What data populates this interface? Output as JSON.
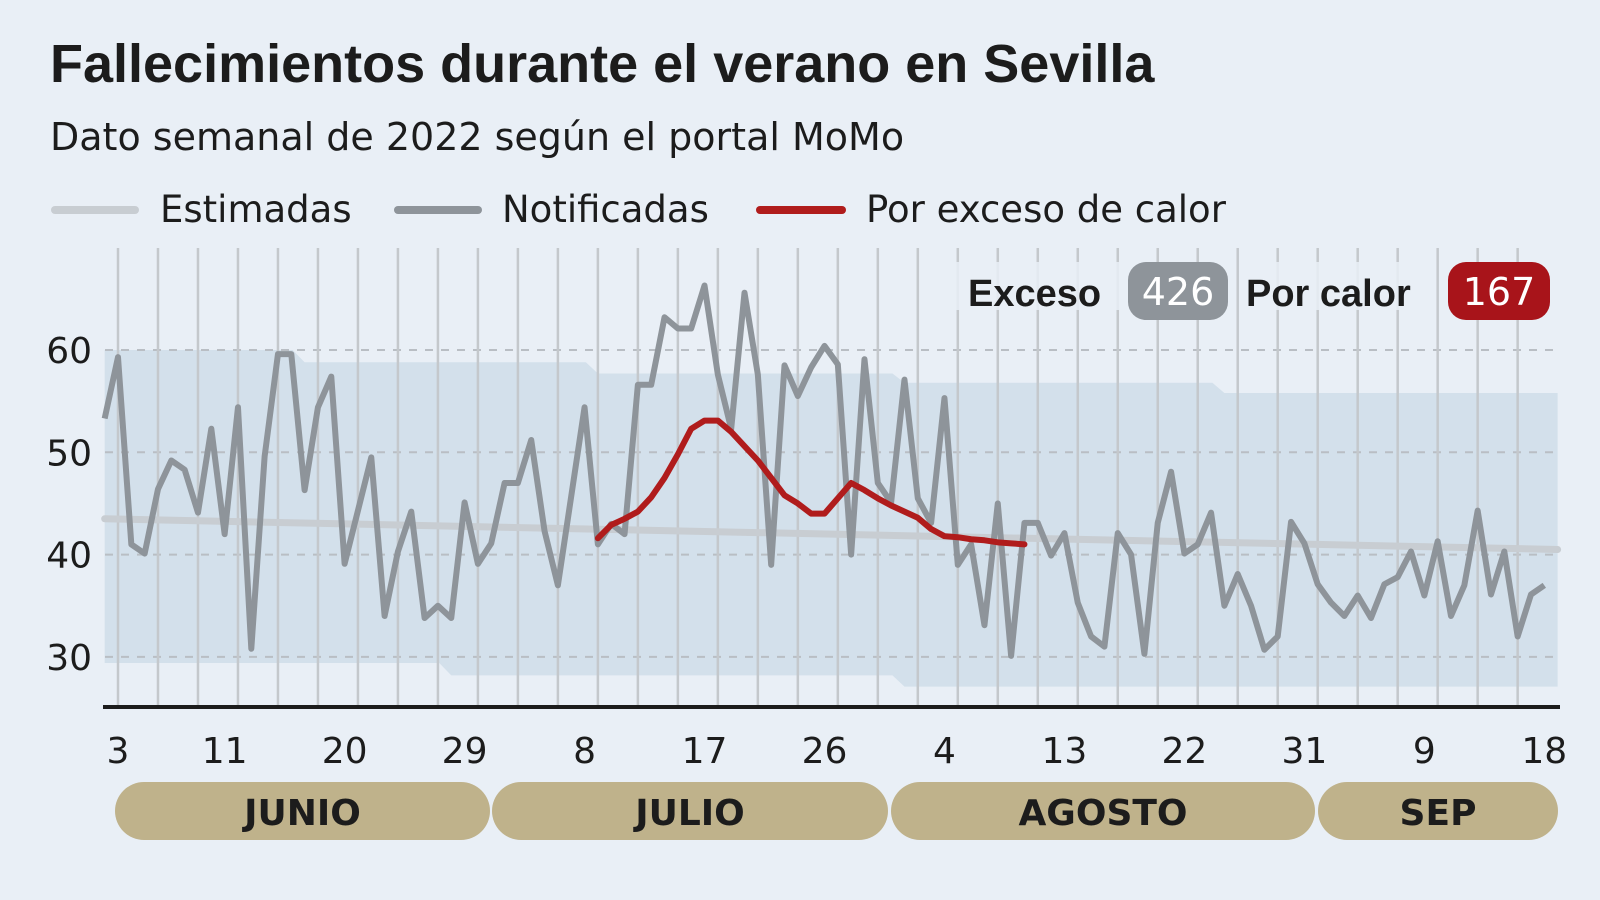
{
  "title": "Fallecimientos durante el verano en Sevilla",
  "subtitle": "Dato semanal de 2022 según el portal MoMo",
  "legend": [
    {
      "label": "Estimadas",
      "color": "#c8cdd2"
    },
    {
      "label": "Notificadas",
      "color": "#8e949a"
    },
    {
      "label": "Por exceso de calor",
      "color": "#b01c1c"
    }
  ],
  "summary": {
    "exceso_label": "Exceso",
    "exceso_value": "426",
    "exceso_color": "#8e949a",
    "calor_label": "Por calor",
    "calor_value": "167",
    "calor_color": "#a8141a"
  },
  "months": [
    "JUNIO",
    "JULIO",
    "AGOSTO",
    "SEP"
  ],
  "month_pill_color": "#bfb28b",
  "chart_data": {
    "type": "line",
    "title": "Fallecimientos durante el verano en Sevilla",
    "subtitle": "Dato semanal de 2022 según el portal MoMo",
    "ylim": [
      25,
      70
    ],
    "yticks": [
      30,
      40,
      50,
      60
    ],
    "ytick_labels": [
      "30",
      "40",
      "50",
      "60"
    ],
    "xtick_dates": [
      "2022-06-03",
      "2022-06-11",
      "2022-06-20",
      "2022-06-29",
      "2022-07-08",
      "2022-07-17",
      "2022-07-26",
      "2022-08-04",
      "2022-08-13",
      "2022-08-22",
      "2022-08-31",
      "2022-09-09",
      "2022-09-18"
    ],
    "xtick_labels": [
      "3",
      "11",
      "20",
      "29",
      "8",
      "17",
      "26",
      "4",
      "13",
      "22",
      "31",
      "9",
      "18"
    ],
    "grid": "horizontal dashed + vertical every 3 days",
    "legend_position": "top-left",
    "series": [
      {
        "name": "Notificadas",
        "start_date": "2022-06-02",
        "frequency": "daily",
        "values": [
          53.3,
          59.3,
          41,
          40.1,
          46.4,
          49.2,
          48.3,
          44.1,
          52.3,
          42,
          54.4,
          30.8,
          49.6,
          59.6,
          59.6,
          46.3,
          54.4,
          57.4,
          39.1,
          44.3,
          49.5,
          34,
          40.3,
          44.2,
          33.8,
          35,
          33.8,
          45.1,
          39.1,
          41.1,
          47,
          47,
          51.2,
          42.3,
          37,
          45.7,
          54.4,
          41,
          43,
          42,
          56.6,
          56.6,
          63.2,
          62.1,
          62.1,
          66.3,
          57.6,
          52.3,
          65.6,
          57.6,
          39,
          58.5,
          55.5,
          58.3,
          60.4,
          58.6,
          40,
          59.1,
          47,
          45.1,
          57.1,
          45.5,
          43.1,
          55.3,
          39,
          41,
          33.1,
          45,
          30.1,
          43.1,
          43.1,
          39.9,
          42.1,
          35.3,
          32,
          31,
          42.1,
          40,
          30.3,
          43.1,
          48.1,
          40.1,
          41,
          44.1,
          35,
          38.1,
          35,
          30.7,
          32,
          43.2,
          41.1,
          37.1,
          35.3,
          34,
          36,
          33.8,
          37.1,
          37.8,
          40.3,
          36,
          41.3,
          34,
          37,
          44.3,
          36.1,
          40.3,
          32,
          36.1,
          37
        ]
      },
      {
        "name": "Estimadas",
        "points": [
          [
            "2022-06-02",
            43.5
          ],
          [
            "2022-09-19",
            40.5
          ]
        ]
      },
      {
        "name": "Por exceso de calor",
        "start_date": "2022-07-09",
        "frequency": "daily",
        "values": [
          41.6,
          42.9,
          43.5,
          44.2,
          45.6,
          47.5,
          49.8,
          52.3,
          53.1,
          53.1,
          52,
          50.6,
          49.2,
          47.5,
          45.8,
          45,
          44,
          44,
          45.5,
          47,
          46.3,
          45.5,
          44.8,
          44.2,
          43.6,
          42.5,
          41.8,
          41.7,
          41.5,
          41.4,
          41.2,
          41.1,
          41
        ]
      }
    ],
    "band": {
      "upper": [
        [
          "2022-06-02",
          60
        ],
        [
          "2022-06-17",
          58.8
        ],
        [
          "2022-07-09",
          57.7
        ],
        [
          "2022-08-01",
          56.8
        ],
        [
          "2022-08-25",
          55.8
        ]
      ],
      "lower": [
        [
          "2022-06-02",
          29.4
        ],
        [
          "2022-06-28",
          28.2
        ],
        [
          "2022-08-01",
          27.1
        ]
      ],
      "end_date": "2022-09-19",
      "color": "#d3e0eb"
    }
  }
}
